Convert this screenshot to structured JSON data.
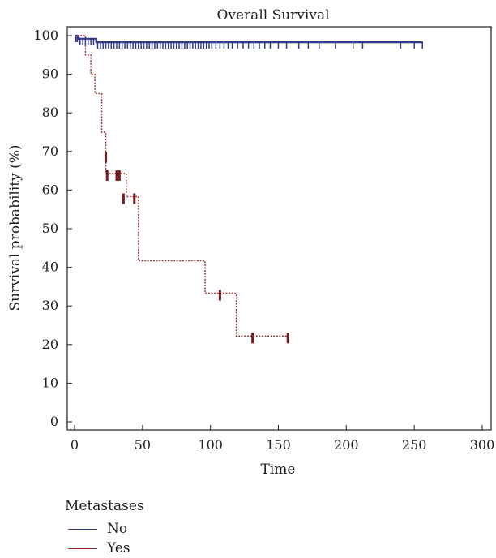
{
  "chart_data": {
    "type": "line",
    "title": "Overall Survival",
    "xlabel": "Time",
    "ylabel": "Survival probability (%)",
    "xlim": [
      0,
      300
    ],
    "ylim": [
      0,
      100
    ],
    "xticks": [
      0,
      50,
      100,
      150,
      200,
      250,
      300
    ],
    "yticks": [
      0,
      10,
      20,
      30,
      40,
      50,
      60,
      70,
      80,
      90,
      100
    ],
    "grid": false,
    "legend_position": "bottom-left",
    "legend_title": "Metastases",
    "series": [
      {
        "name": "No",
        "color": "#2e3a8c",
        "style": "solid",
        "x": [
          0,
          3,
          3,
          16,
          16,
          256
        ],
        "y": [
          100,
          100,
          99.2,
          99.2,
          98.3,
          98.3
        ],
        "censored": [
          1,
          2,
          4,
          6,
          8,
          10,
          12,
          14,
          17,
          19,
          21,
          23,
          25,
          27,
          29,
          31,
          33,
          35,
          37,
          39,
          41,
          43,
          45,
          47,
          49,
          51,
          53,
          55,
          57,
          59,
          61,
          63,
          65,
          67,
          69,
          71,
          73,
          75,
          77,
          79,
          81,
          83,
          85,
          87,
          89,
          91,
          93,
          95,
          97,
          99,
          101,
          104,
          107,
          110,
          113,
          116,
          120,
          124,
          128,
          132,
          136,
          140,
          144,
          150,
          156,
          165,
          172,
          180,
          192,
          205,
          212,
          240,
          250,
          256
        ]
      },
      {
        "name": "Yes",
        "color": "#a0282c",
        "style": "dotted",
        "x": [
          0,
          8,
          8,
          12,
          12,
          15,
          15,
          20,
          20,
          23,
          23,
          38,
          38,
          47,
          47,
          96,
          96,
          119,
          119,
          157
        ],
        "y": [
          100,
          100,
          95,
          95,
          90,
          90,
          85,
          85,
          75,
          75,
          64.3,
          64.3,
          58.3,
          58.3,
          41.7,
          41.7,
          33.3,
          33.3,
          22.2,
          22.2
        ],
        "censored_x": [
          23,
          24,
          31,
          33,
          36,
          44,
          107,
          131,
          157
        ],
        "censored_y": [
          69,
          64.3,
          64.3,
          64.3,
          58.3,
          58.3,
          33.3,
          22.2,
          22.2
        ]
      }
    ]
  }
}
